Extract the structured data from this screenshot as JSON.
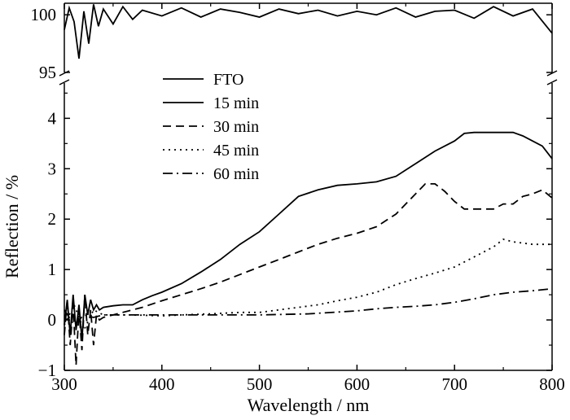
{
  "chart_data": {
    "type": "line",
    "xlabel": "Wavelength / nm",
    "ylabel": "Reflection / %",
    "xlim": [
      300,
      800
    ],
    "ylim_lower": [
      -1,
      4.7
    ],
    "ylim_upper": [
      95,
      101
    ],
    "y_axis_break": true,
    "x_ticks": [
      300,
      400,
      500,
      600,
      700,
      800
    ],
    "y_ticks_lower": [
      -1,
      0,
      1,
      2,
      3,
      4
    ],
    "y_ticks_upper": [
      95,
      100
    ],
    "grid": false,
    "legend_position": "top-left",
    "series": [
      {
        "name": "FTO",
        "dash": "solid",
        "x": [
          300,
          305,
          310,
          315,
          320,
          325,
          330,
          335,
          340,
          350,
          360,
          370,
          380,
          400,
          420,
          440,
          460,
          480,
          500,
          520,
          540,
          560,
          580,
          600,
          620,
          640,
          660,
          680,
          700,
          720,
          740,
          760,
          780,
          800
        ],
        "y": [
          98.7,
          100.6,
          99.4,
          96.2,
          100.3,
          97.5,
          100.9,
          99.0,
          100.5,
          99.2,
          100.7,
          99.6,
          100.4,
          99.9,
          100.6,
          99.8,
          100.5,
          100.2,
          99.8,
          100.5,
          100.1,
          100.4,
          99.9,
          100.3,
          100.0,
          100.6,
          99.8,
          100.3,
          100.4,
          99.7,
          100.7,
          99.9,
          100.5,
          98.4
        ]
      },
      {
        "name": "15 min",
        "dash": "solid",
        "x": [
          300,
          303,
          306,
          309,
          312,
          315,
          318,
          321,
          324,
          327,
          330,
          333,
          336,
          340,
          350,
          360,
          370,
          380,
          390,
          400,
          420,
          440,
          460,
          480,
          500,
          520,
          540,
          560,
          580,
          600,
          620,
          640,
          660,
          680,
          700,
          710,
          720,
          740,
          760,
          770,
          780,
          790,
          800
        ],
        "y": [
          -0.1,
          0.4,
          -0.3,
          0.5,
          -0.2,
          0.3,
          -0.4,
          0.5,
          0.1,
          0.4,
          0.2,
          0.3,
          0.2,
          0.25,
          0.28,
          0.3,
          0.3,
          0.4,
          0.48,
          0.55,
          0.72,
          0.95,
          1.2,
          1.5,
          1.75,
          2.1,
          2.45,
          2.58,
          2.67,
          2.7,
          2.74,
          2.85,
          3.1,
          3.35,
          3.55,
          3.7,
          3.72,
          3.72,
          3.72,
          3.65,
          3.55,
          3.45,
          3.2
        ]
      },
      {
        "name": "30 min",
        "dash": "dashed",
        "x": [
          300,
          303,
          306,
          309,
          312,
          315,
          318,
          321,
          324,
          327,
          330,
          333,
          336,
          340,
          350,
          360,
          370,
          380,
          400,
          420,
          440,
          460,
          480,
          500,
          520,
          540,
          560,
          580,
          600,
          620,
          640,
          660,
          670,
          680,
          690,
          700,
          710,
          720,
          740,
          750,
          760,
          770,
          780,
          790,
          800
        ],
        "y": [
          -0.3,
          0.4,
          -0.5,
          0.3,
          -0.9,
          0.2,
          -0.6,
          0.5,
          -0.3,
          0.2,
          -0.5,
          0.1,
          0.0,
          0.05,
          0.1,
          0.15,
          0.2,
          0.25,
          0.38,
          0.5,
          0.62,
          0.75,
          0.9,
          1.05,
          1.2,
          1.35,
          1.5,
          1.62,
          1.72,
          1.85,
          2.1,
          2.5,
          2.7,
          2.7,
          2.55,
          2.35,
          2.2,
          2.2,
          2.2,
          2.3,
          2.3,
          2.45,
          2.5,
          2.58,
          2.42
        ]
      },
      {
        "name": "45 min",
        "dash": "dotted",
        "x": [
          300,
          310,
          320,
          330,
          340,
          350,
          370,
          400,
          420,
          450,
          480,
          500,
          520,
          540,
          560,
          580,
          600,
          620,
          640,
          660,
          680,
          700,
          720,
          740,
          750,
          760,
          780,
          800
        ],
        "y": [
          -0.1,
          0.3,
          -0.2,
          0.2,
          0.1,
          0.1,
          0.1,
          0.08,
          0.1,
          0.12,
          0.15,
          0.15,
          0.2,
          0.25,
          0.3,
          0.38,
          0.45,
          0.55,
          0.7,
          0.82,
          0.93,
          1.05,
          1.25,
          1.45,
          1.6,
          1.55,
          1.5,
          1.5
        ]
      },
      {
        "name": "60 min",
        "dash": "dashdot",
        "x": [
          300,
          310,
          320,
          330,
          340,
          350,
          370,
          400,
          450,
          500,
          550,
          600,
          620,
          640,
          660,
          680,
          700,
          720,
          740,
          760,
          780,
          800
        ],
        "y": [
          0.2,
          -0.1,
          0.1,
          0.05,
          0.1,
          0.1,
          0.1,
          0.1,
          0.1,
          0.1,
          0.12,
          0.18,
          0.22,
          0.25,
          0.27,
          0.3,
          0.35,
          0.42,
          0.5,
          0.55,
          0.58,
          0.62
        ]
      }
    ]
  }
}
